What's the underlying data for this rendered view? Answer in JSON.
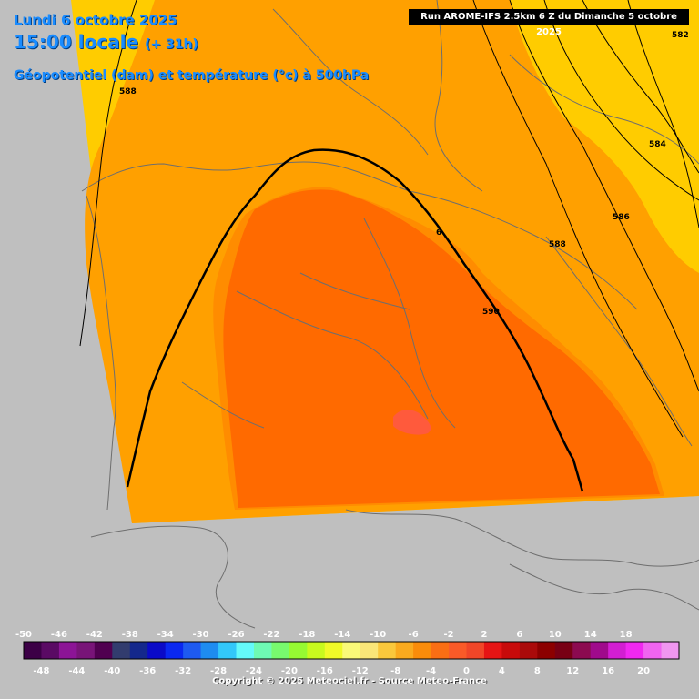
{
  "header": {
    "date": "Lundi 6 octobre 2025",
    "time": "15:00 locale",
    "lead": "(+ 31h)",
    "field": "Géopotentiel (dam) et température (°c) à 500hPa",
    "run": "Run AROME-IFS 2.5km 6 Z du Dimanche 5 octobre 2025"
  },
  "contours": {
    "c588_label": "588",
    "c582_label": "582",
    "c584_label": "584",
    "c586_label": "586",
    "c588b_label": "588",
    "c590_label": "590",
    "c586b_label": "6"
  },
  "scale": {
    "top_labels": [
      "-50",
      "-46",
      "-42",
      "-38",
      "-34",
      "-30",
      "-26",
      "-22",
      "-18",
      "-14",
      "-10",
      "-6",
      "-2",
      "2",
      "6",
      "10",
      "14",
      "18"
    ],
    "bottom_labels": [
      "-48",
      "-44",
      "-40",
      "-36",
      "-32",
      "-28",
      "-24",
      "-20",
      "-16",
      "-12",
      "-8",
      "-4",
      "0",
      "4",
      "8",
      "12",
      "16",
      "20"
    ],
    "colors": [
      "#3c0046",
      "#5a0a64",
      "#8c1496",
      "#781478",
      "#500050",
      "#323c6e",
      "#14288c",
      "#0a0ac8",
      "#0a28f0",
      "#1e5af0",
      "#1e8cf0",
      "#32c8fa",
      "#64fafa",
      "#6efab4",
      "#78fa6e",
      "#96fa32",
      "#c8fa1e",
      "#f0fa28",
      "#fafa78",
      "#fae678",
      "#fac83c",
      "#faaa1e",
      "#fa8c0a",
      "#fa6e14",
      "#fa5a28",
      "#f04628",
      "#e61414",
      "#c80a0a",
      "#aa0a0a",
      "#8c0000",
      "#780014",
      "#8c0a50",
      "#a00a8c",
      "#d21ed2",
      "#f028f0",
      "#f064f0",
      "#f096f0"
    ]
  },
  "colors": {
    "t_m10": "#ffcc00",
    "t_m8": "#ffa000",
    "t_m6": "#ff8c00",
    "t_m4": "#ff6a00",
    "t_m2": "#ff5a3c",
    "land_outside": "#bfbfbf"
  },
  "footer": {
    "copyright": "Copyright © 2025 Meteociel.fr - Source Meteo-France"
  }
}
